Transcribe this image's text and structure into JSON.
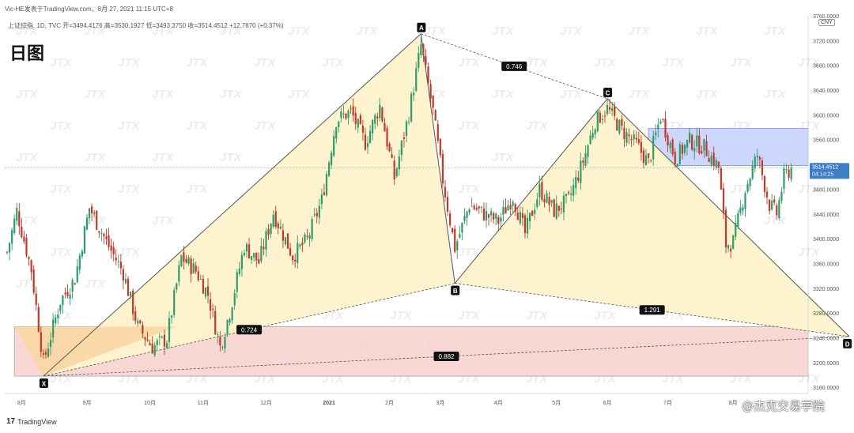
{
  "header": {
    "top_line": "Vic-HE发表于TradingView.com，8月 27, 2021 11:15 UTC+8",
    "ohlc_line": "上证综指, 1D, TVC  开=3494.4176  高=3530.1927  低=3493.3750  收=3514.4512  +12.7870 (+0.37%)",
    "big_title": "日图",
    "currency": "CNY"
  },
  "footer": {
    "logo_text": "TradingView",
    "credit": "@杰克交易学院",
    "watermark": "JTX"
  },
  "colors": {
    "up": "#2e9c6a",
    "down": "#c0392b",
    "triangle_fill": "#fdf4cf",
    "orange_zone": "#f9d6a4",
    "red_zone": "#f8d0cc",
    "blue_zone": "#c8d3fb",
    "pattern_line": "#555555"
  },
  "chart_data": {
    "type": "candlestick",
    "title": "上证综指, 1D, TVC",
    "ylim": [
      3150,
      3760
    ],
    "y_ticks": [
      3160,
      3200,
      3240,
      3280,
      3320,
      3360,
      3400,
      3440,
      3480,
      3520,
      3560,
      3600,
      3640,
      3680,
      3720,
      3760
    ],
    "y_tick_labels": [
      "3160.0000",
      "3200.0000",
      "3240.0000",
      "3280.0000",
      "3320.0000",
      "3360.0000",
      "3400.0000",
      "3440.0000",
      "3480.0000",
      "3520.0000",
      "3560.0000",
      "3600.0000",
      "3640.0000",
      "3680.0000",
      "3720.0000",
      "3760.0000"
    ],
    "x_ticks": [
      {
        "label": "8月",
        "bar": 6
      },
      {
        "label": "9月",
        "bar": 33
      },
      {
        "label": "10月",
        "bar": 59
      },
      {
        "label": "11月",
        "bar": 81
      },
      {
        "label": "12月",
        "bar": 107
      },
      {
        "label": "2021",
        "bar": 133
      },
      {
        "label": "2月",
        "bar": 158
      },
      {
        "label": "3月",
        "bar": 179
      },
      {
        "label": "4月",
        "bar": 203
      },
      {
        "label": "5月",
        "bar": 227
      },
      {
        "label": "6月",
        "bar": 248
      },
      {
        "label": "7月",
        "bar": 273
      },
      {
        "label": "8月",
        "bar": 300
      }
    ],
    "last_price": {
      "value": 3514.4512,
      "label": "3514.4512",
      "countdown": "04:14:25"
    },
    "points": [
      {
        "label": "X",
        "bar": 15,
        "price": 3178
      },
      {
        "label": "A",
        "bar": 171,
        "price": 3731
      },
      {
        "label": "B",
        "bar": 185,
        "price": 3328
      },
      {
        "label": "C",
        "bar": 248,
        "price": 3626
      },
      {
        "label": "D",
        "bar": 348,
        "price": 3242
      }
    ],
    "ratios": [
      {
        "label": "0.746",
        "between": "AC"
      },
      {
        "label": "0.724",
        "between": "XB"
      },
      {
        "label": "1.291",
        "between": "BD"
      },
      {
        "label": "0.882",
        "between": "XD"
      }
    ],
    "zones": [
      {
        "name": "red-zone",
        "y0": 3178,
        "y1": 3258
      },
      {
        "name": "blue-zone",
        "y0": 3518,
        "y1": 3578
      }
    ],
    "anchors": [
      {
        "bar": 0,
        "price": 3378
      },
      {
        "bar": 4,
        "price": 3445
      },
      {
        "bar": 10,
        "price": 3350
      },
      {
        "bar": 15,
        "price": 3200
      },
      {
        "bar": 22,
        "price": 3300
      },
      {
        "bar": 28,
        "price": 3335
      },
      {
        "bar": 34,
        "price": 3450
      },
      {
        "bar": 41,
        "price": 3395
      },
      {
        "bar": 48,
        "price": 3345
      },
      {
        "bar": 54,
        "price": 3258
      },
      {
        "bar": 60,
        "price": 3225
      },
      {
        "bar": 66,
        "price": 3238
      },
      {
        "bar": 72,
        "price": 3370
      },
      {
        "bar": 78,
        "price": 3348
      },
      {
        "bar": 83,
        "price": 3310
      },
      {
        "bar": 88,
        "price": 3225
      },
      {
        "bar": 92,
        "price": 3282
      },
      {
        "bar": 98,
        "price": 3388
      },
      {
        "bar": 104,
        "price": 3362
      },
      {
        "bar": 110,
        "price": 3442
      },
      {
        "bar": 118,
        "price": 3372
      },
      {
        "bar": 124,
        "price": 3398
      },
      {
        "bar": 130,
        "price": 3462
      },
      {
        "bar": 136,
        "price": 3592
      },
      {
        "bar": 142,
        "price": 3605
      },
      {
        "bar": 148,
        "price": 3555
      },
      {
        "bar": 154,
        "price": 3615
      },
      {
        "bar": 160,
        "price": 3498
      },
      {
        "bar": 166,
        "price": 3602
      },
      {
        "bar": 171,
        "price": 3712
      },
      {
        "bar": 176,
        "price": 3605
      },
      {
        "bar": 180,
        "price": 3495
      },
      {
        "bar": 185,
        "price": 3385
      },
      {
        "bar": 191,
        "price": 3455
      },
      {
        "bar": 197,
        "price": 3440
      },
      {
        "bar": 203,
        "price": 3428
      },
      {
        "bar": 209,
        "price": 3468
      },
      {
        "bar": 214,
        "price": 3408
      },
      {
        "bar": 220,
        "price": 3480
      },
      {
        "bar": 226,
        "price": 3445
      },
      {
        "bar": 232,
        "price": 3462
      },
      {
        "bar": 238,
        "price": 3525
      },
      {
        "bar": 243,
        "price": 3590
      },
      {
        "bar": 248,
        "price": 3610
      },
      {
        "bar": 254,
        "price": 3575
      },
      {
        "bar": 260,
        "price": 3552
      },
      {
        "bar": 265,
        "price": 3522
      },
      {
        "bar": 270,
        "price": 3598
      },
      {
        "bar": 276,
        "price": 3530
      },
      {
        "bar": 282,
        "price": 3558
      },
      {
        "bar": 288,
        "price": 3548
      },
      {
        "bar": 294,
        "price": 3515
      },
      {
        "bar": 297,
        "price": 3390
      },
      {
        "bar": 300,
        "price": 3395
      },
      {
        "bar": 305,
        "price": 3480
      },
      {
        "bar": 310,
        "price": 3535
      },
      {
        "bar": 315,
        "price": 3455
      },
      {
        "bar": 318,
        "price": 3440
      },
      {
        "bar": 321,
        "price": 3500
      },
      {
        "bar": 324,
        "price": 3514
      }
    ]
  }
}
